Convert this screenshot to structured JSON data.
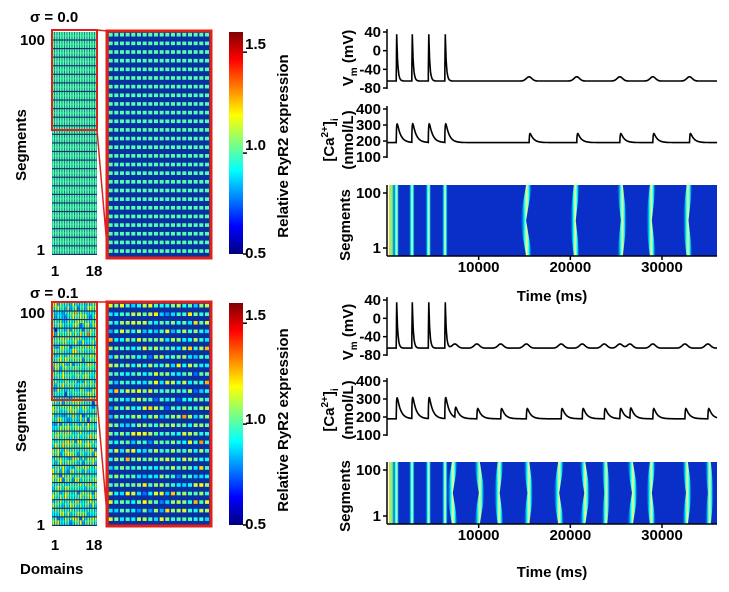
{
  "chart_data": [
    {
      "type": "heatmap",
      "title": "σ = 0.0",
      "xlabel": "",
      "ylabel": "Segments",
      "x_tick_labels": [
        "1",
        "18"
      ],
      "y_tick_labels": [
        "100",
        "1"
      ],
      "colorbar": {
        "label": "Relative RyR2 expression",
        "ticks": [
          "1.5",
          "1.0",
          "0.5"
        ],
        "range": [
          0.5,
          1.6
        ]
      },
      "sigma": 0.0,
      "rows": 100,
      "cols": 18
    },
    {
      "type": "line",
      "ylabel": "V_m (mV)",
      "yticks": [
        "40",
        "0",
        "-40",
        "-80"
      ],
      "ylim": [
        -80,
        40
      ],
      "xlim": [
        0,
        36000
      ],
      "spike_times_ms": [
        1000,
        2700,
        4500,
        6300
      ],
      "bump_times_ms": [
        15500,
        20700,
        25400,
        29000,
        33000
      ],
      "rest_mV": -65
    },
    {
      "type": "line",
      "ylabel": "[Ca2+]i (nmol/L)",
      "yticks": [
        "400",
        "300",
        "200",
        "100"
      ],
      "ylim": [
        100,
        400
      ],
      "xlim": [
        0,
        36000
      ],
      "peak_times_ms": [
        1000,
        2700,
        4500,
        6300,
        15500,
        20700,
        25400,
        29000,
        33000
      ],
      "baseline": 190
    },
    {
      "type": "heatmap",
      "ylabel": "Segments",
      "xlabel": "Time (ms)",
      "yticks": [
        "100",
        "1"
      ],
      "xticks": [
        "10000",
        "20000",
        "30000"
      ],
      "xlim": [
        0,
        36000
      ],
      "wave_times_ms": [
        1000,
        2700,
        4500,
        6300,
        15500,
        20700,
        25400,
        29000,
        33000
      ]
    },
    {
      "type": "heatmap",
      "title": "σ = 0.1",
      "xlabel": "Domains",
      "ylabel": "Segments",
      "x_tick_labels": [
        "1",
        "18"
      ],
      "y_tick_labels": [
        "100",
        "1"
      ],
      "colorbar": {
        "label": "Relative RyR2 expression",
        "ticks": [
          "1.5",
          "1.0",
          "0.5"
        ],
        "range": [
          0.5,
          1.6
        ]
      },
      "sigma": 0.1,
      "rows": 100,
      "cols": 18
    },
    {
      "type": "line",
      "ylabel": "V_m (mV)",
      "yticks": [
        "40",
        "0",
        "-40",
        "-80"
      ],
      "ylim": [
        -80,
        40
      ],
      "xlim": [
        0,
        36000
      ],
      "spike_times_ms": [
        1000,
        2700,
        4500,
        6300
      ],
      "bump_times_ms": [
        7400,
        9800,
        12400,
        15200,
        19000,
        21300,
        23700,
        25400,
        26500,
        29000,
        32500,
        35000
      ],
      "rest_mV": -65
    },
    {
      "type": "line",
      "ylabel": "[Ca2+]i (nmol/L)",
      "yticks": [
        "400",
        "300",
        "200",
        "100"
      ],
      "ylim": [
        100,
        400
      ],
      "xlim": [
        0,
        36000
      ],
      "peak_times_ms": [
        1000,
        2700,
        4500,
        6300,
        7400,
        9800,
        12400,
        15200,
        19000,
        21300,
        23700,
        25400,
        26500,
        29000,
        32500,
        35000
      ],
      "baseline": 190
    },
    {
      "type": "heatmap",
      "ylabel": "Segments",
      "xlabel": "Time (ms)",
      "yticks": [
        "100",
        "1"
      ],
      "xticks": [
        "10000",
        "20000",
        "30000"
      ],
      "xlim": [
        0,
        36000
      ],
      "wave_times_ms": [
        1000,
        2700,
        4500,
        6300,
        7400,
        9800,
        12400,
        15200,
        19000,
        21300,
        23700,
        26500,
        29000,
        32500,
        35000
      ]
    }
  ],
  "labels": {
    "sigma_top": "σ = 0.0",
    "sigma_bottom": "σ = 0.1",
    "segments": "Segments",
    "domains": "Domains",
    "tick_100": "100",
    "tick_1": "1",
    "tick_18": "18",
    "cb_label": "Relative RyR2 expression",
    "cb_15": "1.5",
    "cb_10": "1.0",
    "cb_05": "0.5",
    "vm_main": "V",
    "vm_sub": "m",
    "vm_unit": " (mV)",
    "ca_main": "[Ca",
    "ca_sup": "2+",
    "ca_close": "]",
    "ca_sub": "i",
    "ca_unit": "(nmol/L)",
    "time": "Time (ms)",
    "vm_ticks": [
      "40",
      "0",
      "-40",
      "-80"
    ],
    "ca_ticks": [
      "400",
      "300",
      "200",
      "100"
    ],
    "time_ticks": [
      "10000",
      "20000",
      "30000"
    ]
  },
  "colors": {
    "highlight_box": "#e0201a",
    "trace": "#000000",
    "wave_background": "#0a2fc8",
    "grid_background": "#0a2fa8",
    "colormap": [
      "#00007f",
      "#0000ff",
      "#007fff",
      "#00ffff",
      "#7fff7f",
      "#ffff00",
      "#ff7f00",
      "#ff0000",
      "#7f0000"
    ]
  }
}
